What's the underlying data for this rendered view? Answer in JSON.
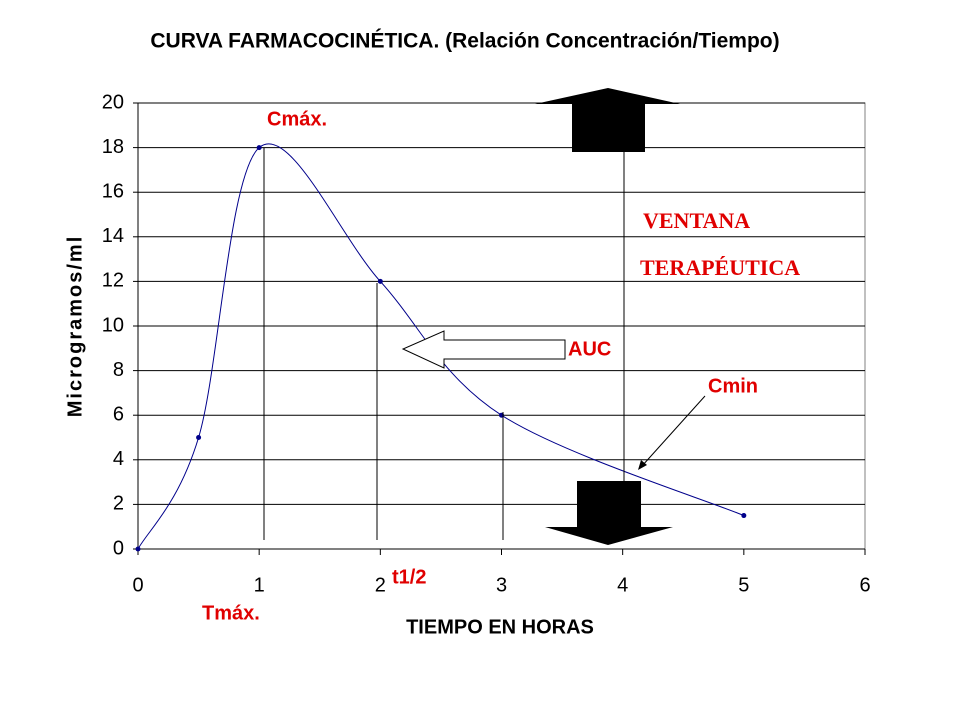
{
  "chart_data": {
    "type": "line",
    "title": "CURVA FARMACOCINÉTICA. (Relación Concentración/Tiempo)",
    "x_label": "TIEMPO EN HORAS",
    "y_label": "Microgramos/ml",
    "x": [
      0,
      0.5,
      1,
      2,
      3,
      5
    ],
    "series": [
      {
        "color": "#00008b",
        "values": [
          0,
          5,
          18,
          12,
          6,
          1.5
        ]
      }
    ],
    "xlim": [
      0,
      6
    ],
    "ylim": [
      0,
      20
    ],
    "xticks": [
      0,
      1,
      2,
      3,
      4,
      5,
      6
    ],
    "yticks": [
      0,
      2,
      4,
      6,
      8,
      10,
      12,
      14,
      16,
      18,
      20
    ],
    "grid": true,
    "smooth": true,
    "annotations": [
      "Cmáx.",
      "Tmáx.",
      "t1/2",
      "AUC",
      "Cmin",
      "VENTANA",
      "TERAPÉUTICA"
    ]
  }
}
